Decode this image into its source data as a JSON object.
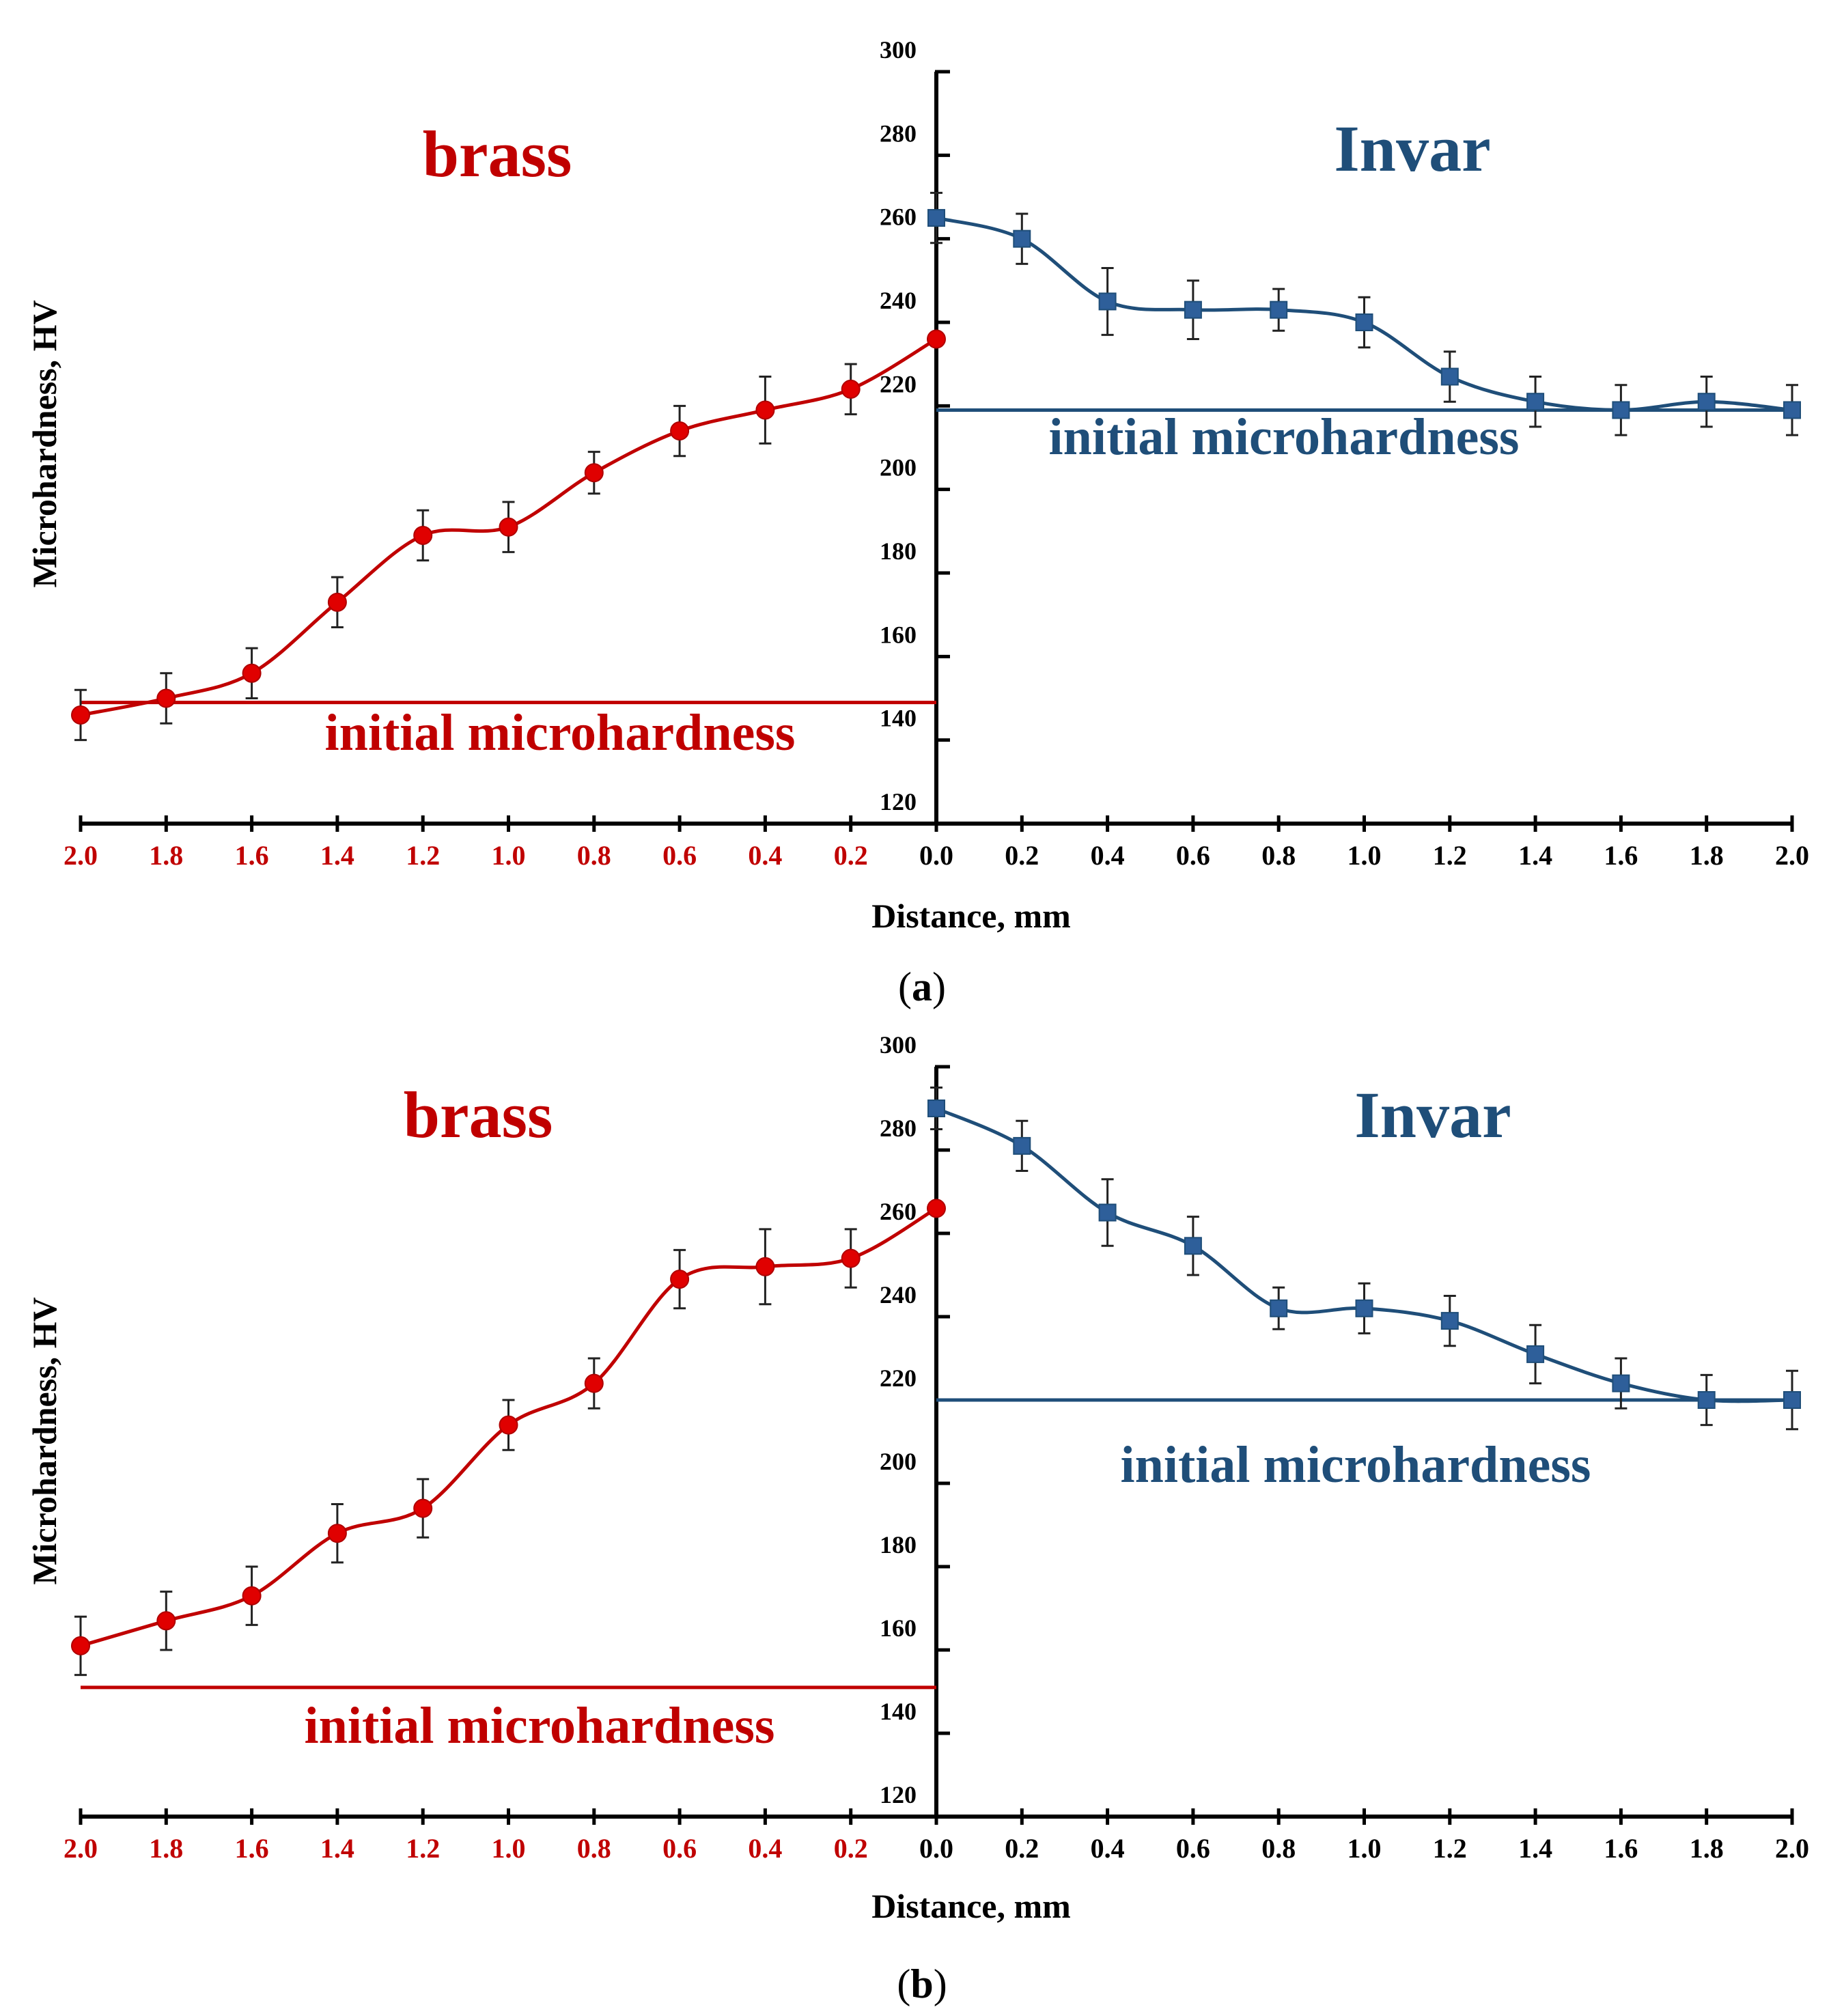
{
  "figure": {
    "xlabel": "Distance, mm",
    "ylabel": "Microhardness, HV",
    "colors": {
      "brass": "#e00000",
      "invar": "#1f4e79",
      "axis": "#000000",
      "brass_label": "#c00000",
      "brass_tick": "#c00000"
    }
  },
  "chart_data": [
    {
      "type": "line",
      "panel_label": "a",
      "title_left": "brass",
      "title_right": "Invar",
      "xlabel": "Distance, mm",
      "ylabel": "Microhardness, HV",
      "ylim": [
        120,
        300
      ],
      "yticks": [
        120,
        140,
        160,
        180,
        200,
        220,
        240,
        260,
        280,
        300
      ],
      "x_ticks_brass": [
        "2.0",
        "1.8",
        "1.6",
        "1.4",
        "1.2",
        "1.0",
        "0.8",
        "0.6",
        "0.4",
        "0.2"
      ],
      "x_ticks_invar": [
        "0.0",
        "0.2",
        "0.4",
        "0.6",
        "0.8",
        "1.0",
        "1.2",
        "1.4",
        "1.6",
        "1.8",
        "2.0"
      ],
      "series": [
        {
          "name": "brass",
          "side": "left",
          "marker": "circle",
          "x": [
            2.0,
            1.8,
            1.6,
            1.4,
            1.2,
            1.0,
            0.8,
            0.6,
            0.4,
            0.2,
            0.0
          ],
          "values": [
            146,
            150,
            156,
            173,
            189,
            191,
            204,
            214,
            219,
            224,
            236
          ],
          "errors": [
            6,
            6,
            6,
            6,
            6,
            6,
            5,
            6,
            8,
            6,
            0
          ],
          "initial": 149,
          "initial_label": "initial microhardness"
        },
        {
          "name": "Invar",
          "side": "right",
          "marker": "square",
          "x": [
            0.0,
            0.2,
            0.4,
            0.6,
            0.8,
            1.0,
            1.2,
            1.4,
            1.6,
            1.8,
            2.0
          ],
          "values": [
            265,
            260,
            245,
            243,
            243,
            240,
            227,
            221,
            219,
            221,
            219
          ],
          "errors": [
            6,
            6,
            8,
            7,
            5,
            6,
            6,
            6,
            6,
            6,
            6
          ],
          "initial": 219,
          "initial_label": "initial microhardness"
        }
      ]
    },
    {
      "type": "line",
      "panel_label": "b",
      "title_left": "brass",
      "title_right": "Invar",
      "xlabel": "Distance, mm",
      "ylabel": "Microhardness, HV",
      "ylim": [
        120,
        300
      ],
      "yticks": [
        120,
        140,
        160,
        180,
        200,
        220,
        240,
        260,
        280,
        300
      ],
      "x_ticks_brass": [
        "2.0",
        "1.8",
        "1.6",
        "1.4",
        "1.2",
        "1.0",
        "0.8",
        "0.6",
        "0.4",
        "0.2"
      ],
      "x_ticks_invar": [
        "0.0",
        "0.2",
        "0.4",
        "0.6",
        "0.8",
        "1.0",
        "1.2",
        "1.4",
        "1.6",
        "1.8",
        "2.0"
      ],
      "series": [
        {
          "name": "brass",
          "side": "left",
          "marker": "circle",
          "x": [
            2.0,
            1.8,
            1.6,
            1.4,
            1.2,
            1.0,
            0.8,
            0.6,
            0.4,
            0.2,
            0.0
          ],
          "values": [
            161,
            167,
            173,
            188,
            194,
            214,
            224,
            249,
            252,
            254,
            266
          ],
          "errors": [
            7,
            7,
            7,
            7,
            7,
            6,
            6,
            7,
            9,
            7,
            0
          ],
          "initial": 151,
          "initial_label": "initial microhardness"
        },
        {
          "name": "Invar",
          "side": "right",
          "marker": "square",
          "x": [
            0.0,
            0.2,
            0.4,
            0.6,
            0.8,
            1.0,
            1.2,
            1.4,
            1.6,
            1.8,
            2.0
          ],
          "values": [
            290,
            281,
            265,
            257,
            242,
            242,
            239,
            231,
            224,
            220,
            220
          ],
          "errors": [
            5,
            6,
            8,
            7,
            5,
            6,
            6,
            7,
            6,
            6,
            7
          ],
          "initial": 220,
          "initial_label": "initial microhardness"
        }
      ]
    }
  ]
}
